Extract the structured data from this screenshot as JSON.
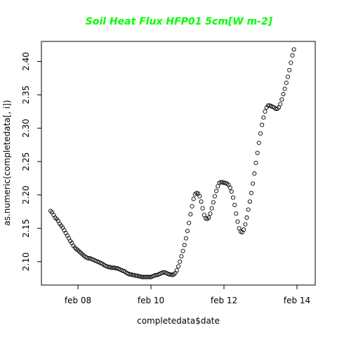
{
  "colors": {
    "title": "#00ff00",
    "points": "#000000",
    "axis": "#000000"
  },
  "chart_data": {
    "type": "scatter",
    "title": "Soil Heat Flux HFP01 5cm[W m-2]",
    "xlabel": "completedata$date",
    "ylabel": "as.numeric(completedata[, i])",
    "xlim": [
      "2015-02-07",
      "2015-02-14.5"
    ],
    "ylim": [
      2.065,
      2.43
    ],
    "x_ticks": [
      {
        "value": "2015-02-08",
        "label": "feb 08"
      },
      {
        "value": "2015-02-10",
        "label": "feb 10"
      },
      {
        "value": "2015-02-12",
        "label": "feb 12"
      },
      {
        "value": "2015-02-14",
        "label": "feb 14"
      }
    ],
    "y_ticks": [
      2.1,
      2.15,
      2.2,
      2.25,
      2.3,
      2.35,
      2.4
    ],
    "y_tick_labels": [
      "2.10",
      "2.15",
      "2.20",
      "2.25",
      "2.30",
      "2.35",
      "2.40"
    ],
    "grid": false,
    "marker": "open-circle",
    "series": [
      {
        "x_start": "2015-02-07 06:00",
        "x_step_hours": 1,
        "values": [
          2.176,
          2.174,
          2.17,
          2.166,
          2.164,
          2.161,
          2.157,
          2.154,
          2.151,
          2.147,
          2.143,
          2.139,
          2.135,
          2.131,
          2.128,
          2.124,
          2.121,
          2.119,
          2.117,
          2.115,
          2.113,
          2.111,
          2.109,
          2.107,
          2.106,
          2.105,
          2.105,
          2.104,
          2.103,
          2.102,
          2.101,
          2.1,
          2.099,
          2.098,
          2.097,
          2.095,
          2.094,
          2.093,
          2.092,
          2.092,
          2.091,
          2.091,
          2.091,
          2.09,
          2.09,
          2.089,
          2.088,
          2.087,
          2.086,
          2.085,
          2.083,
          2.082,
          2.081,
          2.081,
          2.08,
          2.08,
          2.079,
          2.079,
          2.078,
          2.078,
          2.077,
          2.077,
          2.077,
          2.077,
          2.077,
          2.077,
          2.077,
          2.078,
          2.079,
          2.08,
          2.08,
          2.081,
          2.082,
          2.083,
          2.084,
          2.084,
          2.083,
          2.082,
          2.081,
          2.081,
          2.08,
          2.081,
          2.083,
          2.087,
          2.093,
          2.1,
          2.108,
          2.116,
          2.125,
          2.135,
          2.146,
          2.158,
          2.171,
          2.183,
          2.194,
          2.201,
          2.203,
          2.202,
          2.198,
          2.19,
          2.18,
          2.17,
          2.165,
          2.164,
          2.166,
          2.172,
          2.18,
          2.189,
          2.198,
          2.206,
          2.213,
          2.218,
          2.219,
          2.219,
          2.218,
          2.218,
          2.217,
          2.215,
          2.211,
          2.205,
          2.196,
          2.185,
          2.172,
          2.16,
          2.15,
          2.145,
          2.144,
          2.148,
          2.156,
          2.166,
          2.178,
          2.19,
          2.203,
          2.217,
          2.232,
          2.248,
          2.263,
          2.278,
          2.292,
          2.305,
          2.316,
          2.325,
          2.331,
          2.334,
          2.334,
          2.333,
          2.332,
          2.331,
          2.329,
          2.329,
          2.331,
          2.336,
          2.343,
          2.351,
          2.359,
          2.368,
          2.377,
          2.387,
          2.398,
          2.409,
          2.418
        ]
      }
    ]
  }
}
